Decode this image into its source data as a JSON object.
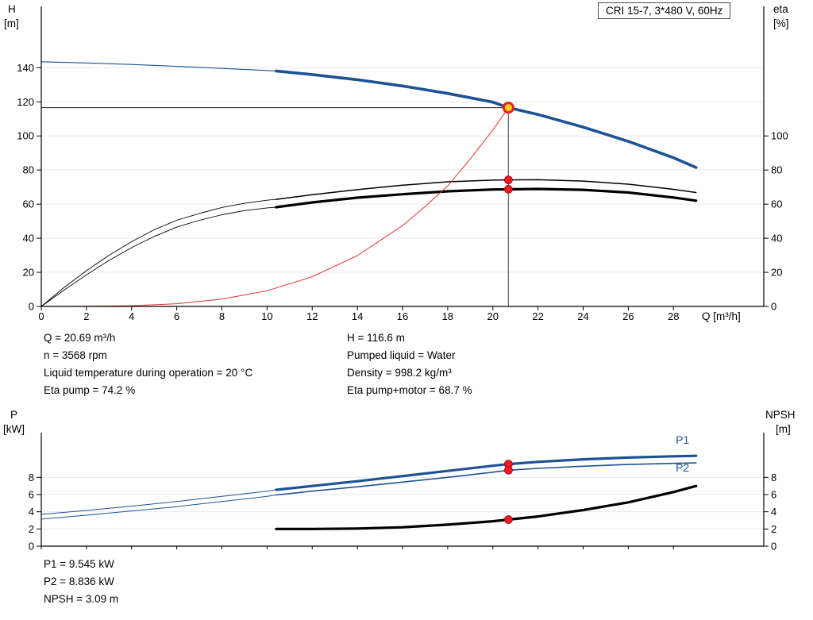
{
  "title_box": "CRI 15-7, 3*480 V, 60Hz",
  "axis_titles": {
    "h": "H",
    "h_unit": "[m]",
    "eta": "eta",
    "eta_unit": "[%]",
    "q": "Q [m³/h]",
    "p": "P",
    "p_unit": "[kW]",
    "npsh": "NPSH",
    "npsh_unit": "[m]"
  },
  "annotations": {
    "col1": [
      "Q = 20.69 m³/h",
      "n = 3568 rpm",
      "Liquid temperature during operation = 20 °C",
      "Eta pump = 74.2 %"
    ],
    "col2": [
      "H = 116.6 m",
      "Pumped liquid = Water",
      "Density = 998.2 kg/m³",
      "Eta pump+motor = 68.7 %"
    ],
    "bottom": [
      "P1 = 9.545 kW",
      "P2 = 8.836 kW",
      "NPSH = 3.09 m"
    ]
  },
  "colors": {
    "curve_blue": "#1d5296",
    "curve_black": "#000000",
    "curve_red": "#e0352b",
    "dot_red": "#ee1c25",
    "duty_yellow": "#ffd21e",
    "grid": "#e9e9e9"
  },
  "chart_data": [
    {
      "type": "line",
      "title": "CRI 15-7, 3*480 V, 60Hz",
      "xlabel": "Q [m³/h]",
      "ylabel_left": "H [m]",
      "ylabel_right": "eta [%]",
      "xlim": [
        0,
        32
      ],
      "ylim": [
        0,
        176
      ],
      "xticks": [
        0,
        2,
        4,
        6,
        8,
        10,
        12,
        14,
        16,
        18,
        20,
        22,
        24,
        26,
        28
      ],
      "yticks_left": [
        0,
        20,
        40,
        60,
        80,
        100,
        120,
        140
      ],
      "yticks_right": [
        0,
        20,
        40,
        60,
        80,
        100
      ],
      "grid": true,
      "legend": "none",
      "duty_point": {
        "Q_m3h": 20.69,
        "H_m": 116.6,
        "eta_pump_pct": 74.2,
        "eta_pump_motor_pct": 68.7,
        "n_rpm": 3568
      },
      "series": [
        {
          "name": "h-curve-leadin",
          "color": "#1d5296",
          "width": 1.1,
          "points": [
            [
              0,
              143.5
            ],
            [
              2,
              142.8
            ],
            [
              4,
              141.9
            ],
            [
              6,
              140.8
            ],
            [
              8,
              139.6
            ],
            [
              10,
              138.4
            ],
            [
              10.4,
              138.1
            ]
          ]
        },
        {
          "name": "h-curve",
          "color": "#1d5296",
          "width": 3.6,
          "points": [
            [
              10.4,
              138.1
            ],
            [
              12,
              136.0
            ],
            [
              14,
              133.0
            ],
            [
              16,
              129.3
            ],
            [
              18,
              124.9
            ],
            [
              20,
              119.8
            ],
            [
              20.69,
              116.6
            ],
            [
              22,
              112.6
            ],
            [
              24,
              105.2
            ],
            [
              26,
              96.8
            ],
            [
              28,
              87.2
            ],
            [
              29,
              81.5
            ]
          ]
        },
        {
          "name": "eta-pump-leadin",
          "color": "#000000",
          "width": 0.9,
          "points": [
            [
              0,
              0
            ],
            [
              1,
              11
            ],
            [
              2,
              21
            ],
            [
              3,
              30
            ],
            [
              4,
              38
            ],
            [
              5,
              45
            ],
            [
              6,
              50.5
            ],
            [
              7,
              54.5
            ],
            [
              8,
              58
            ],
            [
              9,
              60.5
            ],
            [
              10,
              62.3
            ],
            [
              10.4,
              62.8
            ]
          ]
        },
        {
          "name": "eta-pump-curve",
          "color": "#000000",
          "width": 1.5,
          "points": [
            [
              10.4,
              62.8
            ],
            [
              12,
              65.5
            ],
            [
              14,
              68.5
            ],
            [
              16,
              71.1
            ],
            [
              18,
              73.1
            ],
            [
              20,
              74.1
            ],
            [
              20.69,
              74.2
            ],
            [
              22,
              74.3
            ],
            [
              24,
              73.5
            ],
            [
              26,
              71.7
            ],
            [
              28,
              68.7
            ],
            [
              29,
              66.8
            ]
          ]
        },
        {
          "name": "eta-pump-motor-leadin",
          "color": "#000000",
          "width": 0.9,
          "points": [
            [
              0,
              0
            ],
            [
              1,
              9.5
            ],
            [
              2,
              18.5
            ],
            [
              3,
              27
            ],
            [
              4,
              34.5
            ],
            [
              5,
              41
            ],
            [
              6,
              46.5
            ],
            [
              7,
              50.5
            ],
            [
              8,
              53.8
            ],
            [
              9,
              56.2
            ],
            [
              10,
              57.8
            ],
            [
              10.4,
              58.2
            ]
          ]
        },
        {
          "name": "eta-pump-motor-curve",
          "color": "#000000",
          "width": 3.2,
          "points": [
            [
              10.4,
              58.2
            ],
            [
              12,
              61.0
            ],
            [
              14,
              63.8
            ],
            [
              16,
              65.8
            ],
            [
              18,
              67.5
            ],
            [
              20,
              68.6
            ],
            [
              20.69,
              68.7
            ],
            [
              22,
              68.9
            ],
            [
              24,
              68.4
            ],
            [
              26,
              66.8
            ],
            [
              28,
              63.9
            ],
            [
              29,
              62.0
            ]
          ]
        },
        {
          "name": "system-curve",
          "color": "#e0352b",
          "width": 1.0,
          "points": [
            [
              0,
              0
            ],
            [
              2,
              0.1
            ],
            [
              4,
              0.4
            ],
            [
              6,
              1.6
            ],
            [
              8,
              4.3
            ],
            [
              10,
              9.2
            ],
            [
              12,
              17.4
            ],
            [
              14,
              29.8
            ],
            [
              16,
              47.4
            ],
            [
              17,
              58.6
            ],
            [
              18,
              70.7
            ],
            [
              19,
              86.5
            ],
            [
              20,
              103.5
            ],
            [
              20.69,
              116.6
            ]
          ]
        }
      ],
      "ref_lines": [
        {
          "name": "duty-head-line",
          "x1": 0,
          "y1": 116.6,
          "x2": 20.69,
          "y2": 116.6,
          "color": "#1a1a1a",
          "width": 1
        },
        {
          "name": "duty-flow-line",
          "x1": 20.69,
          "y1": 0,
          "x2": 20.69,
          "y2": 116.6,
          "color": "#6e6e6e",
          "width": 1.3
        }
      ],
      "markers": [
        {
          "name": "eta-pump-point",
          "x": 20.69,
          "y": 74.2,
          "r": 5,
          "fill": "#ee1c25",
          "stroke": "#a00000",
          "stroke_width": 0.8
        },
        {
          "name": "eta-pump-motor-point",
          "x": 20.69,
          "y": 68.7,
          "r": 5,
          "fill": "#ee1c25",
          "stroke": "#a00000",
          "stroke_width": 0.8
        },
        {
          "name": "duty-point",
          "x": 20.69,
          "y": 116.6,
          "r": 6,
          "fill": "#ffd21e",
          "stroke": "#e8231a",
          "stroke_width": 3
        }
      ],
      "labels": []
    },
    {
      "type": "line",
      "title": "",
      "xlabel": "Q [m³/h]",
      "ylabel_left": "P [kW]",
      "ylabel_right": "NPSH [m]",
      "xlim": [
        0,
        32
      ],
      "ylim": [
        0,
        13.2
      ],
      "xticks": [
        0,
        2,
        4,
        6,
        8,
        10,
        12,
        14,
        16,
        18,
        20,
        22,
        24,
        26,
        28
      ],
      "yticks_left": [
        0,
        2,
        4,
        6,
        8
      ],
      "yticks_right": [
        0,
        2,
        4,
        6,
        8
      ],
      "grid": true,
      "legend": "inline",
      "duty_point": {
        "Q_m3h": 20.69,
        "P1_kW": 9.545,
        "P2_kW": 8.836,
        "NPSH_m": 3.09
      },
      "series": [
        {
          "name": "p1-curve-leadin",
          "color": "#1d5296",
          "width": 1.0,
          "points": [
            [
              0,
              3.7
            ],
            [
              2,
              4.15
            ],
            [
              4,
              4.65
            ],
            [
              6,
              5.2
            ],
            [
              8,
              5.8
            ],
            [
              10,
              6.4
            ],
            [
              10.4,
              6.55
            ]
          ]
        },
        {
          "name": "p1-curve",
          "color": "#1d5296",
          "width": 3.2,
          "points": [
            [
              10.4,
              6.55
            ],
            [
              12,
              7.0
            ],
            [
              14,
              7.55
            ],
            [
              16,
              8.15
            ],
            [
              18,
              8.75
            ],
            [
              20,
              9.35
            ],
            [
              20.69,
              9.545
            ],
            [
              22,
              9.8
            ],
            [
              24,
              10.1
            ],
            [
              26,
              10.3
            ],
            [
              28,
              10.45
            ],
            [
              29,
              10.5
            ]
          ]
        },
        {
          "name": "p2-curve-leadin",
          "color": "#1d5296",
          "width": 1.0,
          "points": [
            [
              0,
              3.15
            ],
            [
              2,
              3.6
            ],
            [
              4,
              4.1
            ],
            [
              6,
              4.6
            ],
            [
              8,
              5.2
            ],
            [
              10,
              5.8
            ],
            [
              10.4,
              5.95
            ]
          ]
        },
        {
          "name": "p2-curve",
          "color": "#1d5296",
          "width": 1.6,
          "points": [
            [
              10.4,
              5.95
            ],
            [
              12,
              6.4
            ],
            [
              14,
              6.9
            ],
            [
              16,
              7.45
            ],
            [
              18,
              8.0
            ],
            [
              20,
              8.6
            ],
            [
              20.69,
              8.836
            ],
            [
              22,
              9.05
            ],
            [
              24,
              9.3
            ],
            [
              26,
              9.5
            ],
            [
              28,
              9.63
            ],
            [
              29,
              9.68
            ]
          ]
        },
        {
          "name": "npsh-curve",
          "color": "#000000",
          "width": 3.2,
          "points": [
            [
              10.4,
              2.0
            ],
            [
              12,
              2.0
            ],
            [
              14,
              2.05
            ],
            [
              16,
              2.2
            ],
            [
              18,
              2.5
            ],
            [
              20,
              2.9
            ],
            [
              20.69,
              3.09
            ],
            [
              22,
              3.45
            ],
            [
              24,
              4.2
            ],
            [
              26,
              5.1
            ],
            [
              28,
              6.3
            ],
            [
              29,
              7.0
            ]
          ]
        }
      ],
      "ref_lines": [],
      "markers": [
        {
          "name": "p1-point",
          "x": 20.69,
          "y": 9.545,
          "r": 5,
          "fill": "#ee1c25",
          "stroke": "#a00000",
          "stroke_width": 0.8
        },
        {
          "name": "p2-point",
          "x": 20.69,
          "y": 8.836,
          "r": 5,
          "fill": "#ee1c25",
          "stroke": "#a00000",
          "stroke_width": 0.8
        },
        {
          "name": "npsh-point",
          "x": 20.69,
          "y": 3.09,
          "r": 5,
          "fill": "#ee1c25",
          "stroke": "#a00000",
          "stroke_width": 0.8
        }
      ],
      "labels": [
        {
          "name": "p1-label",
          "text": "P1",
          "x": 28.1,
          "y": 11.9,
          "color": "#1d5296"
        },
        {
          "name": "p2-label",
          "text": "P2",
          "x": 28.1,
          "y": 8.7,
          "color": "#1d5296"
        }
      ]
    }
  ]
}
